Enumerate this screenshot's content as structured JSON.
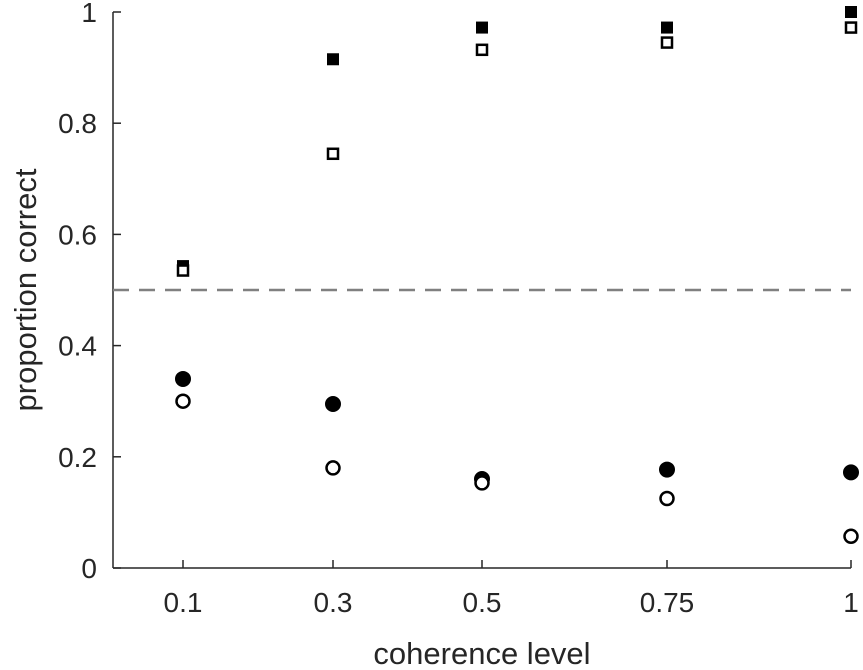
{
  "chart_data": {
    "type": "scatter",
    "title": "",
    "xlabel": "coherence level",
    "ylabel": "proportion correct",
    "categories": [
      "0.1",
      "0.3",
      "0.5",
      "0.75",
      "1"
    ],
    "ylim": [
      0,
      1
    ],
    "yticks": [
      "0",
      "0.2",
      "0.4",
      "0.6",
      "0.8",
      "1"
    ],
    "ytick_values": [
      0,
      0.2,
      0.4,
      0.6,
      0.8,
      1
    ],
    "reference_line": {
      "y": 0.5,
      "style": "dashed",
      "color": "#808080"
    },
    "grid": false,
    "legend": "none",
    "series": [
      {
        "marker": "square",
        "fill": "filled",
        "values": [
          0.543,
          0.915,
          0.972,
          0.972,
          1.0
        ]
      },
      {
        "marker": "square",
        "fill": "open",
        "values": [
          0.535,
          0.745,
          0.932,
          0.945,
          0.972
        ]
      },
      {
        "marker": "circle",
        "fill": "filled",
        "values": [
          0.34,
          0.295,
          0.16,
          0.177,
          0.172
        ]
      },
      {
        "marker": "circle",
        "fill": "open",
        "values": [
          0.3,
          0.18,
          0.153,
          0.125,
          0.057
        ]
      }
    ]
  }
}
